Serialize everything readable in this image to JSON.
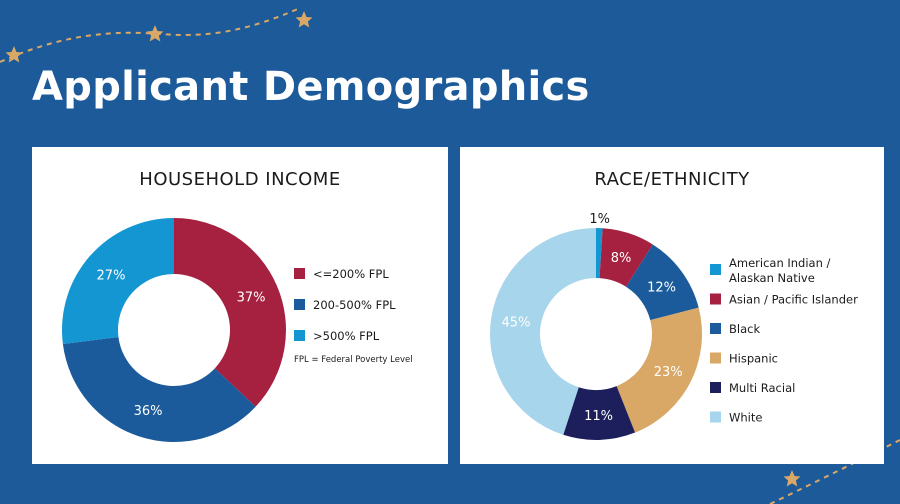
{
  "page": {
    "title": "Applicant Demographics",
    "background_color": "#1c5a99",
    "decoration": "dashed-line-with-stars"
  },
  "chart_data": [
    {
      "type": "pie",
      "style": "donut",
      "title": "HOUSEHOLD INCOME",
      "categories": [
        "<=200% FPL",
        "200-500% FPL",
        ">500% FPL"
      ],
      "values": [
        37,
        36,
        27
      ],
      "labels": [
        "37%",
        "36%",
        "27%"
      ],
      "colors": [
        "#a6213f",
        "#1b5b9b",
        "#1396d2"
      ],
      "note": "FPL = Federal Poverty Level",
      "legend_position": "right"
    },
    {
      "type": "pie",
      "style": "donut",
      "title": "RACE/ETHNICITY",
      "categories": [
        "American Indian / Alaskan Native",
        "Asian / Pacific Islander",
        "Black",
        "Hispanic",
        "Multi Racial",
        "White"
      ],
      "legend_lines": [
        [
          "American Indian /",
          "Alaskan Native"
        ],
        [
          "Asian / Pacific Islander"
        ],
        [
          "Black"
        ],
        [
          "Hispanic"
        ],
        [
          "Multi Racial"
        ],
        [
          "White"
        ]
      ],
      "values": [
        1,
        8,
        12,
        23,
        11,
        45
      ],
      "labels": [
        "1%",
        "8%",
        "12%",
        "23%",
        "11%",
        "45%"
      ],
      "colors": [
        "#1396d2",
        "#a6213f",
        "#1b5b9b",
        "#d9a866",
        "#1c1f5c",
        "#a6d5ec"
      ],
      "legend_position": "right"
    }
  ]
}
